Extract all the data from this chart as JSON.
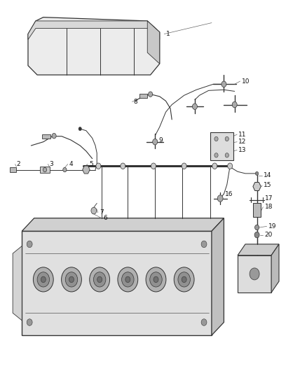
{
  "bg_color": "#ffffff",
  "line_color": "#333333",
  "fig_width": 4.38,
  "fig_height": 5.33,
  "dpi": 100
}
